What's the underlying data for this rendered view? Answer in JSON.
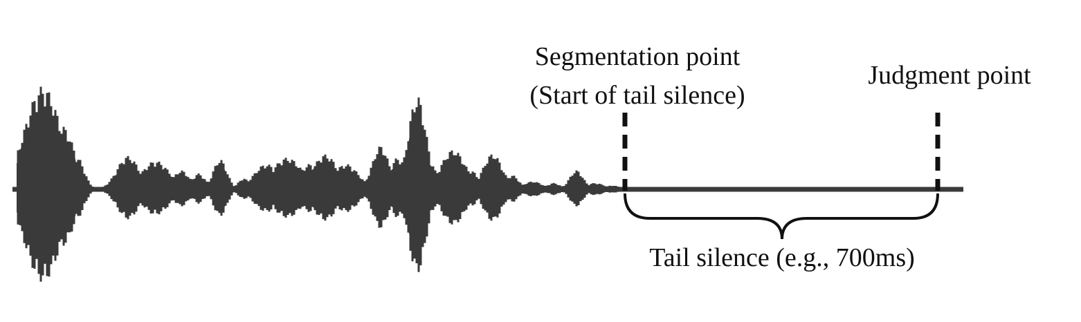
{
  "labels": {
    "segmentation_line1": "Segmentation point",
    "segmentation_line2": "(Start of tail silence)",
    "judgment": "Judgment point",
    "tail_silence": "Tail silence (e.g., 700ms)"
  },
  "colors": {
    "waveform": "#3a3a3a",
    "marker": "#111111",
    "text": "#111111",
    "background": "#ffffff"
  }
}
